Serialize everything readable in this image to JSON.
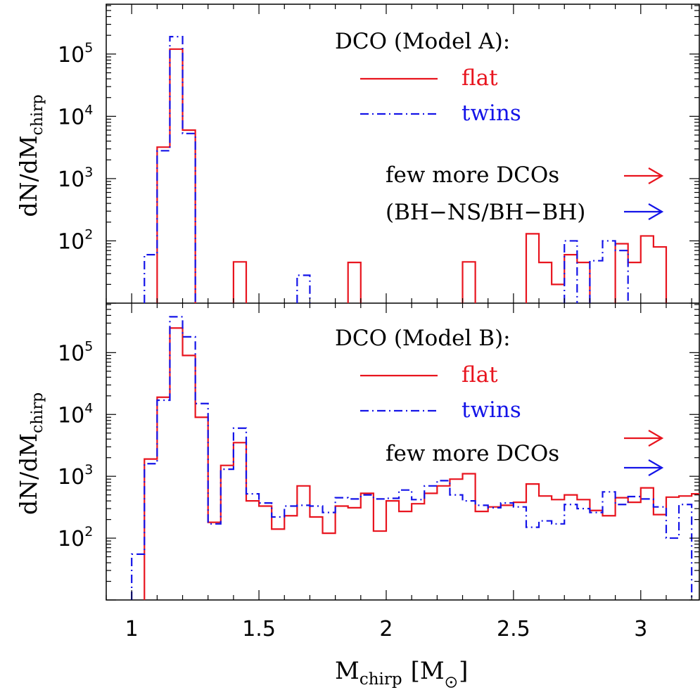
{
  "figure": {
    "xlabel_main": "M",
    "xlabel_sub": "chirp",
    "xlabel_unit_open": "[M",
    "xlabel_unit_close": "]",
    "x_ticks": [
      "1",
      "1.5",
      "2",
      "2.5",
      "3"
    ],
    "ylabel_main": "dN/dM",
    "ylabel_sub": "chirp",
    "y_tick_base": "10",
    "y_tick_exponents": [
      "2",
      "3",
      "4",
      "5"
    ],
    "colors": {
      "flat": "#e8141e",
      "twins": "#1414e8"
    }
  },
  "chart_data": [
    {
      "type": "histogram",
      "panel": "top",
      "title": "DCO (Model A):",
      "legend": {
        "flat": "flat",
        "twins": "twins"
      },
      "annotations": [
        "few more DCOs",
        "(BH−NS/BH−BH)"
      ],
      "xlim": [
        0.9,
        3.23
      ],
      "ylim_log10": [
        1.0,
        5.8
      ],
      "log_y": true,
      "bin_width": 0.05,
      "series": [
        {
          "name": "flat",
          "bins": [
            {
              "x": 1.1,
              "y": 3200
            },
            {
              "x": 1.15,
              "y": 120000
            },
            {
              "x": 1.2,
              "y": 6000
            },
            {
              "x": 1.4,
              "y": 46
            },
            {
              "x": 1.85,
              "y": 45
            },
            {
              "x": 2.3,
              "y": 46
            },
            {
              "x": 2.55,
              "y": 130
            },
            {
              "x": 2.6,
              "y": 45
            },
            {
              "x": 2.65,
              "y": 20
            },
            {
              "x": 2.7,
              "y": 60
            },
            {
              "x": 2.75,
              "y": 45
            },
            {
              "x": 2.9,
              "y": 90
            },
            {
              "x": 2.95,
              "y": 45
            },
            {
              "x": 3.0,
              "y": 120
            },
            {
              "x": 3.05,
              "y": 80
            }
          ]
        },
        {
          "name": "twins",
          "bins": [
            {
              "x": 1.05,
              "y": 60
            },
            {
              "x": 1.1,
              "y": 2800
            },
            {
              "x": 1.15,
              "y": 190000
            },
            {
              "x": 1.2,
              "y": 5300
            },
            {
              "x": 1.65,
              "y": 28
            },
            {
              "x": 2.7,
              "y": 100
            },
            {
              "x": 2.8,
              "y": 48
            },
            {
              "x": 2.85,
              "y": 100
            },
            {
              "x": 2.9,
              "y": 70
            }
          ]
        }
      ]
    },
    {
      "type": "histogram",
      "panel": "bottom",
      "title": "DCO (Model B):",
      "legend": {
        "flat": "flat",
        "twins": "twins"
      },
      "annotations": [
        "few more DCOs"
      ],
      "xlim": [
        0.9,
        3.23
      ],
      "ylim_log10": [
        1.0,
        5.8
      ],
      "log_y": true,
      "bin_width": 0.05,
      "series": [
        {
          "name": "flat",
          "bins": [
            {
              "x": 1.05,
              "y": 1900
            },
            {
              "x": 1.1,
              "y": 19000
            },
            {
              "x": 1.15,
              "y": 250000
            },
            {
              "x": 1.2,
              "y": 90000
            },
            {
              "x": 1.25,
              "y": 9000
            },
            {
              "x": 1.3,
              "y": 180
            },
            {
              "x": 1.35,
              "y": 1500
            },
            {
              "x": 1.4,
              "y": 3500
            },
            {
              "x": 1.45,
              "y": 400
            },
            {
              "x": 1.5,
              "y": 330
            },
            {
              "x": 1.55,
              "y": 140
            },
            {
              "x": 1.6,
              "y": 230
            },
            {
              "x": 1.65,
              "y": 700
            },
            {
              "x": 1.7,
              "y": 220
            },
            {
              "x": 1.75,
              "y": 120
            },
            {
              "x": 1.8,
              "y": 330
            },
            {
              "x": 1.85,
              "y": 310
            },
            {
              "x": 1.9,
              "y": 530
            },
            {
              "x": 1.95,
              "y": 130
            },
            {
              "x": 2.0,
              "y": 400
            },
            {
              "x": 2.05,
              "y": 270
            },
            {
              "x": 2.1,
              "y": 360
            },
            {
              "x": 2.15,
              "y": 530
            },
            {
              "x": 2.2,
              "y": 700
            },
            {
              "x": 2.25,
              "y": 900
            },
            {
              "x": 2.3,
              "y": 1100
            },
            {
              "x": 2.35,
              "y": 270
            },
            {
              "x": 2.4,
              "y": 320
            },
            {
              "x": 2.45,
              "y": 340
            },
            {
              "x": 2.5,
              "y": 380
            },
            {
              "x": 2.55,
              "y": 750
            },
            {
              "x": 2.6,
              "y": 480
            },
            {
              "x": 2.65,
              "y": 420
            },
            {
              "x": 2.7,
              "y": 500
            },
            {
              "x": 2.75,
              "y": 420
            },
            {
              "x": 2.8,
              "y": 280
            },
            {
              "x": 2.85,
              "y": 230
            },
            {
              "x": 2.9,
              "y": 450
            },
            {
              "x": 2.95,
              "y": 380
            },
            {
              "x": 3.0,
              "y": 650
            },
            {
              "x": 3.05,
              "y": 240
            },
            {
              "x": 3.1,
              "y": 460
            },
            {
              "x": 3.15,
              "y": 480
            },
            {
              "x": 3.2,
              "y": 520
            }
          ]
        },
        {
          "name": "twins",
          "bins": [
            {
              "x": 1.0,
              "y": 55
            },
            {
              "x": 1.05,
              "y": 1600
            },
            {
              "x": 1.1,
              "y": 17000
            },
            {
              "x": 1.15,
              "y": 380000
            },
            {
              "x": 1.2,
              "y": 180000
            },
            {
              "x": 1.25,
              "y": 15000
            },
            {
              "x": 1.3,
              "y": 170
            },
            {
              "x": 1.35,
              "y": 1300
            },
            {
              "x": 1.4,
              "y": 6000
            },
            {
              "x": 1.45,
              "y": 520
            },
            {
              "x": 1.5,
              "y": 370
            },
            {
              "x": 1.55,
              "y": 220
            },
            {
              "x": 1.6,
              "y": 330
            },
            {
              "x": 1.65,
              "y": 340
            },
            {
              "x": 1.7,
              "y": 330
            },
            {
              "x": 1.75,
              "y": 260
            },
            {
              "x": 1.8,
              "y": 450
            },
            {
              "x": 1.85,
              "y": 430
            },
            {
              "x": 1.9,
              "y": 500
            },
            {
              "x": 1.95,
              "y": 430
            },
            {
              "x": 2.0,
              "y": 440
            },
            {
              "x": 2.05,
              "y": 600
            },
            {
              "x": 2.1,
              "y": 420
            },
            {
              "x": 2.15,
              "y": 700
            },
            {
              "x": 2.2,
              "y": 850
            },
            {
              "x": 2.25,
              "y": 500
            },
            {
              "x": 2.3,
              "y": 400
            },
            {
              "x": 2.35,
              "y": 340
            },
            {
              "x": 2.4,
              "y": 310
            },
            {
              "x": 2.45,
              "y": 370
            },
            {
              "x": 2.5,
              "y": 320
            },
            {
              "x": 2.55,
              "y": 150
            },
            {
              "x": 2.6,
              "y": 190
            },
            {
              "x": 2.65,
              "y": 170
            },
            {
              "x": 2.7,
              "y": 350
            },
            {
              "x": 2.75,
              "y": 300
            },
            {
              "x": 2.8,
              "y": 260
            },
            {
              "x": 2.85,
              "y": 560
            },
            {
              "x": 2.9,
              "y": 350
            },
            {
              "x": 2.95,
              "y": 470
            },
            {
              "x": 3.0,
              "y": 430
            },
            {
              "x": 3.05,
              "y": 320
            },
            {
              "x": 3.1,
              "y": 100
            },
            {
              "x": 3.15,
              "y": 350
            }
          ]
        }
      ]
    }
  ]
}
